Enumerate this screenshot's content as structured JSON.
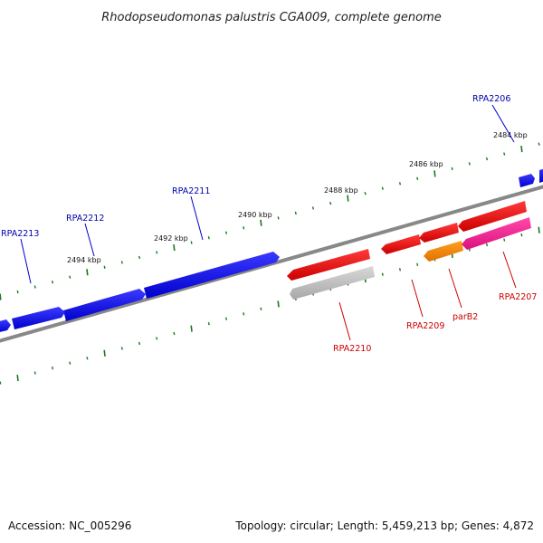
{
  "title": "Rhodopseudomonas palustris CGA009, complete genome",
  "accession": "Accession: NC_005296",
  "topology": "Topology: circular; Length: 5,459,213 bp; Genes: 4,872",
  "colors": {
    "forward": "#0000ff",
    "reverse": "#ff0000",
    "pseudo": "#c0c0c0",
    "partition": "#ff8c00",
    "hypothetical": "#ff2a9a",
    "backbone": "#888888",
    "tick": "#1a7a1a",
    "forward_label": "#0000aa",
    "reverse_label": "#cc0000"
  },
  "ticks": [
    "2484 kbp",
    "2486 kbp",
    "2488 kbp",
    "2490 kbp",
    "2492 kbp",
    "2494 kbp"
  ],
  "genes": {
    "rpa2206": "RPA2206",
    "rpa2207": "RPA2207",
    "parb2": "parB2",
    "rpa2209": "RPA2209",
    "rpa2210": "RPA2210",
    "rpa2211": "RPA2211",
    "rpa2212": "RPA2212",
    "rpa2213": "RPA2213"
  }
}
